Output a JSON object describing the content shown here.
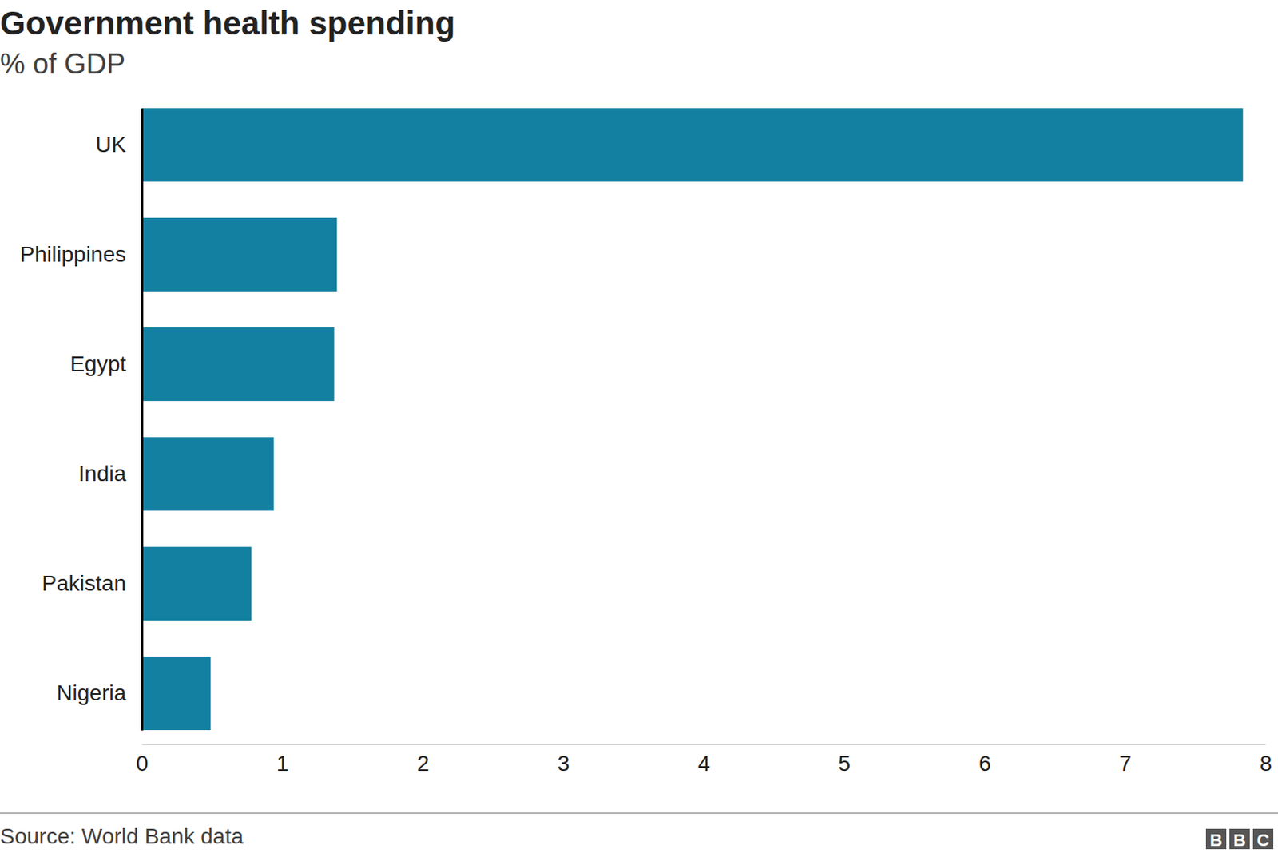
{
  "chart_data": {
    "type": "bar",
    "orientation": "horizontal",
    "title": "Government health spending",
    "subtitle": "% of GDP",
    "categories": [
      "UK",
      "Philippines",
      "Egypt",
      "India",
      "Pakistan",
      "Nigeria"
    ],
    "values": [
      7.84,
      1.39,
      1.37,
      0.94,
      0.78,
      0.49
    ],
    "color": "#1380a1",
    "xlim": [
      0,
      8
    ],
    "xticks": [
      0,
      1,
      2,
      3,
      4,
      5,
      6,
      7,
      8
    ],
    "grid": false,
    "source": "Source: World Bank data",
    "logo": "BBC"
  }
}
